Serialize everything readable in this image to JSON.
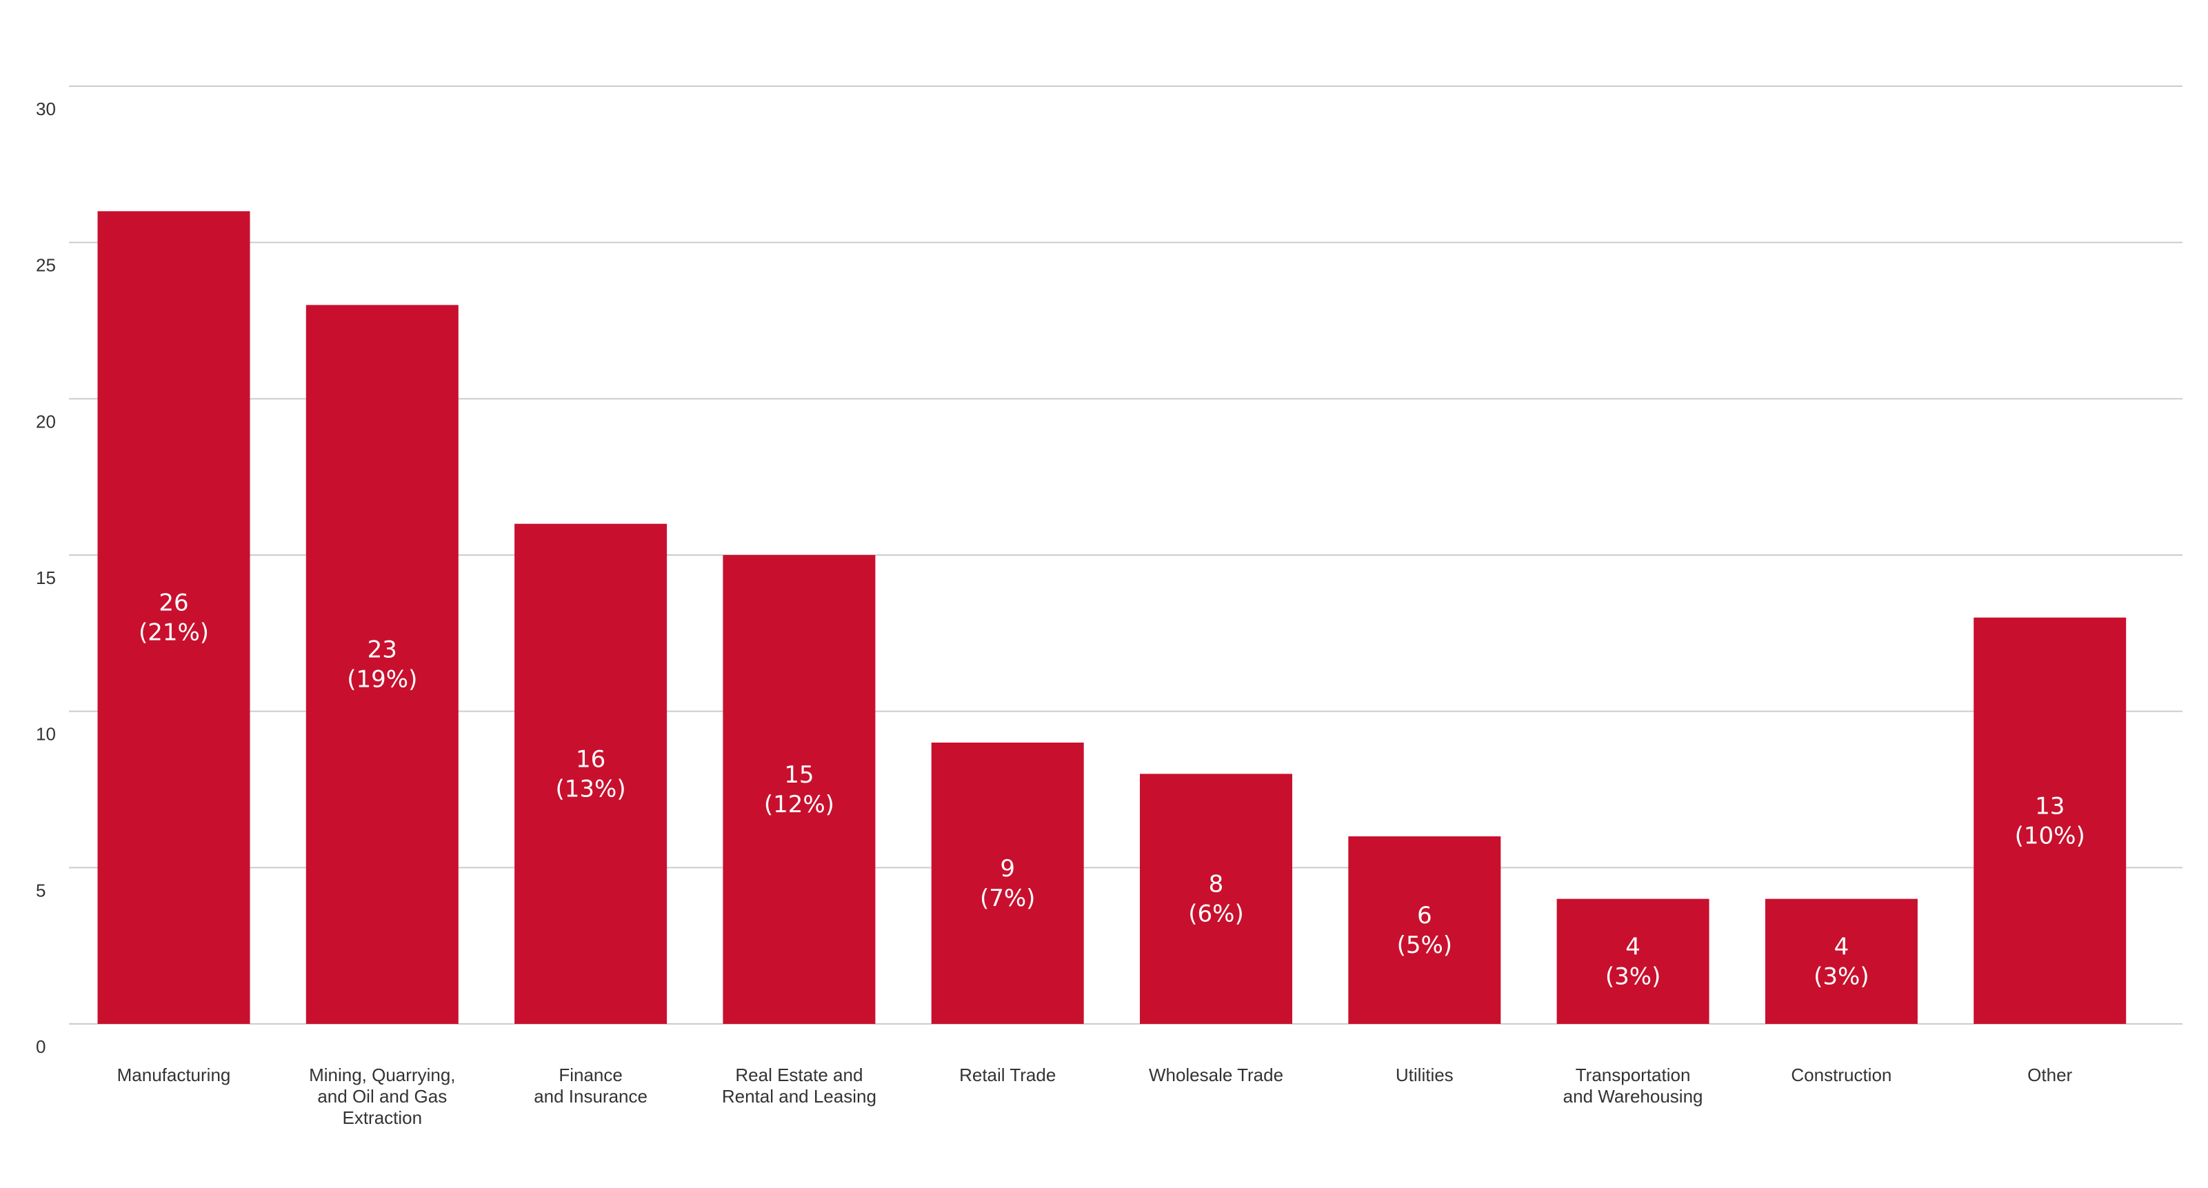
{
  "chart_data": {
    "type": "bar",
    "categories": [
      [
        "Manufacturing"
      ],
      [
        "Mining, Quarrying,",
        "and Oil and Gas",
        "Extraction"
      ],
      [
        "Finance",
        "and Insurance"
      ],
      [
        "Real Estate and",
        "Rental and Leasing"
      ],
      [
        "Retail Trade"
      ],
      [
        "Wholesale Trade"
      ],
      [
        "Utilities"
      ],
      [
        "Transportation",
        "and Warehousing"
      ],
      [
        "Construction"
      ],
      [
        "Other"
      ]
    ],
    "values": [
      26,
      23,
      16,
      15,
      9,
      8,
      6,
      4,
      4,
      13
    ],
    "value_labels": [
      "26",
      "23",
      "16",
      "15",
      "9",
      "8",
      "6",
      "4",
      "4",
      "13"
    ],
    "percent_labels": [
      "(21%)",
      "(19%)",
      "(13%)",
      "(12%)",
      "(7%)",
      "(6%)",
      "(5%)",
      "(3%)",
      "(3%)",
      "(10%)"
    ],
    "yticks": [
      0,
      5,
      10,
      15,
      20,
      25,
      30
    ],
    "ylim": [
      0,
      30
    ],
    "bar_color": "#c8102e",
    "grid": true,
    "title": "",
    "xlabel": "",
    "ylabel": ""
  }
}
